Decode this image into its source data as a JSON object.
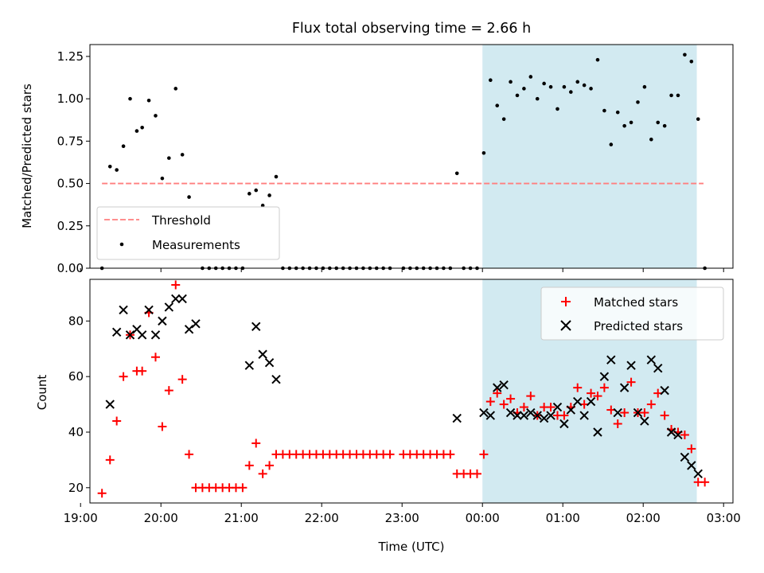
{
  "chart_data": [
    {
      "type": "scatter",
      "title": "Flux total observing time = 2.66 h",
      "xlabel": "",
      "ylabel": "Matched/Predicted stars",
      "xlim": [
        "19:07",
        "03:07"
      ],
      "ylim": [
        0,
        1.32
      ],
      "y_ticks": [
        "0.00",
        "0.25",
        "0.50",
        "0.75",
        "1.00",
        "1.25"
      ],
      "x_ticks": [
        "19:00",
        "20:00",
        "21:00",
        "22:00",
        "23:00",
        "00:00",
        "01:00",
        "02:00",
        "03:00"
      ],
      "x_tick_labels_visible": false,
      "shaded_interval": {
        "start": "00:00",
        "end": "02:40",
        "color": "#add8e6"
      },
      "legend": {
        "position": "lower-left",
        "entries": [
          "Threshold",
          "Measurements"
        ]
      },
      "series": [
        {
          "name": "Threshold",
          "kind": "dashed-line",
          "color": "#ff7f7f",
          "points": [
            [
              "19:16",
              0.5
            ],
            [
              "02:45",
              0.5
            ]
          ]
        },
        {
          "name": "Measurements",
          "kind": "dot",
          "color": "#000000",
          "points": [
            [
              "19:16",
              0.0
            ],
            [
              "19:22",
              0.6
            ],
            [
              "19:27",
              0.58
            ],
            [
              "19:32",
              0.72
            ],
            [
              "19:37",
              1.0
            ],
            [
              "19:42",
              0.81
            ],
            [
              "19:46",
              0.83
            ],
            [
              "19:51",
              0.99
            ],
            [
              "19:56",
              0.9
            ],
            [
              "20:01",
              0.53
            ],
            [
              "20:06",
              0.65
            ],
            [
              "20:11",
              1.06
            ],
            [
              "20:16",
              0.67
            ],
            [
              "20:21",
              0.42
            ],
            [
              "20:26",
              0.26
            ],
            [
              "20:31",
              0.0
            ],
            [
              "20:36",
              0.0
            ],
            [
              "20:41",
              0.0
            ],
            [
              "20:46",
              0.0
            ],
            [
              "20:51",
              0.0
            ],
            [
              "20:56",
              0.0
            ],
            [
              "21:01",
              0.0
            ],
            [
              "21:06",
              0.44
            ],
            [
              "21:11",
              0.46
            ],
            [
              "21:16",
              0.37
            ],
            [
              "21:21",
              0.43
            ],
            [
              "21:26",
              0.54
            ],
            [
              "21:31",
              0.0
            ],
            [
              "21:36",
              0.0
            ],
            [
              "21:41",
              0.0
            ],
            [
              "21:46",
              0.0
            ],
            [
              "21:51",
              0.0
            ],
            [
              "21:56",
              0.0
            ],
            [
              "22:01",
              0.0
            ],
            [
              "22:06",
              0.0
            ],
            [
              "22:11",
              0.0
            ],
            [
              "22:16",
              0.0
            ],
            [
              "22:21",
              0.0
            ],
            [
              "22:26",
              0.0
            ],
            [
              "22:31",
              0.0
            ],
            [
              "22:36",
              0.0
            ],
            [
              "22:41",
              0.0
            ],
            [
              "22:46",
              0.0
            ],
            [
              "22:51",
              0.0
            ],
            [
              "23:01",
              0.0
            ],
            [
              "23:06",
              0.0
            ],
            [
              "23:11",
              0.0
            ],
            [
              "23:16",
              0.0
            ],
            [
              "23:21",
              0.0
            ],
            [
              "23:26",
              0.0
            ],
            [
              "23:31",
              0.0
            ],
            [
              "23:36",
              0.0
            ],
            [
              "23:41",
              0.56
            ],
            [
              "23:46",
              0.0
            ],
            [
              "23:51",
              0.0
            ],
            [
              "23:56",
              0.0
            ],
            [
              "00:01",
              0.68
            ],
            [
              "00:06",
              1.11
            ],
            [
              "00:11",
              0.96
            ],
            [
              "00:16",
              0.88
            ],
            [
              "00:21",
              1.1
            ],
            [
              "00:26",
              1.02
            ],
            [
              "00:31",
              1.06
            ],
            [
              "00:36",
              1.13
            ],
            [
              "00:41",
              1.0
            ],
            [
              "00:46",
              1.09
            ],
            [
              "00:51",
              1.07
            ],
            [
              "00:56",
              0.94
            ],
            [
              "01:01",
              1.07
            ],
            [
              "01:06",
              1.04
            ],
            [
              "01:11",
              1.1
            ],
            [
              "01:16",
              1.08
            ],
            [
              "01:21",
              1.06
            ],
            [
              "01:26",
              1.23
            ],
            [
              "01:31",
              0.93
            ],
            [
              "01:36",
              0.73
            ],
            [
              "01:41",
              0.92
            ],
            [
              "01:46",
              0.84
            ],
            [
              "01:51",
              0.86
            ],
            [
              "01:56",
              0.98
            ],
            [
              "02:01",
              1.07
            ],
            [
              "02:06",
              0.76
            ],
            [
              "02:11",
              0.86
            ],
            [
              "02:16",
              0.84
            ],
            [
              "02:21",
              1.02
            ],
            [
              "02:26",
              1.02
            ],
            [
              "02:31",
              1.26
            ],
            [
              "02:36",
              1.22
            ],
            [
              "02:41",
              0.88
            ],
            [
              "02:46",
              0.0
            ]
          ]
        }
      ]
    },
    {
      "type": "scatter",
      "title": "",
      "xlabel": "Time (UTC)",
      "ylabel": "Count",
      "xlim": [
        "19:07",
        "03:07"
      ],
      "ylim": [
        14.5,
        95
      ],
      "y_ticks": [
        "20",
        "40",
        "60",
        "80"
      ],
      "x_ticks": [
        "19:00",
        "20:00",
        "21:00",
        "22:00",
        "23:00",
        "00:00",
        "01:00",
        "02:00",
        "03:00"
      ],
      "shaded_interval": {
        "start": "00:00",
        "end": "02:40",
        "color": "#add8e6"
      },
      "legend": {
        "position": "top-right",
        "entries": [
          "Matched stars",
          "Predicted stars"
        ]
      },
      "series": [
        {
          "name": "Matched stars",
          "marker": "+",
          "color": "#ff0000",
          "points": [
            [
              "19:16",
              18
            ],
            [
              "19:22",
              30
            ],
            [
              "19:27",
              44
            ],
            [
              "19:32",
              60
            ],
            [
              "19:37",
              75
            ],
            [
              "19:42",
              62
            ],
            [
              "19:46",
              62
            ],
            [
              "19:51",
              83
            ],
            [
              "19:56",
              67
            ],
            [
              "20:01",
              42
            ],
            [
              "20:06",
              55
            ],
            [
              "20:11",
              93
            ],
            [
              "20:16",
              59
            ],
            [
              "20:21",
              32
            ],
            [
              "20:26",
              20
            ],
            [
              "20:31",
              20
            ],
            [
              "20:36",
              20
            ],
            [
              "20:41",
              20
            ],
            [
              "20:46",
              20
            ],
            [
              "20:51",
              20
            ],
            [
              "20:56",
              20
            ],
            [
              "21:01",
              20
            ],
            [
              "21:06",
              28
            ],
            [
              "21:11",
              36
            ],
            [
              "21:16",
              25
            ],
            [
              "21:21",
              28
            ],
            [
              "21:26",
              32
            ],
            [
              "21:31",
              32
            ],
            [
              "21:36",
              32
            ],
            [
              "21:41",
              32
            ],
            [
              "21:46",
              32
            ],
            [
              "21:51",
              32
            ],
            [
              "21:56",
              32
            ],
            [
              "22:01",
              32
            ],
            [
              "22:06",
              32
            ],
            [
              "22:11",
              32
            ],
            [
              "22:16",
              32
            ],
            [
              "22:21",
              32
            ],
            [
              "22:26",
              32
            ],
            [
              "22:31",
              32
            ],
            [
              "22:36",
              32
            ],
            [
              "22:41",
              32
            ],
            [
              "22:46",
              32
            ],
            [
              "22:51",
              32
            ],
            [
              "23:01",
              32
            ],
            [
              "23:06",
              32
            ],
            [
              "23:11",
              32
            ],
            [
              "23:16",
              32
            ],
            [
              "23:21",
              32
            ],
            [
              "23:26",
              32
            ],
            [
              "23:31",
              32
            ],
            [
              "23:36",
              32
            ],
            [
              "23:41",
              25
            ],
            [
              "23:46",
              25
            ],
            [
              "23:51",
              25
            ],
            [
              "23:56",
              25
            ],
            [
              "00:01",
              32
            ],
            [
              "00:06",
              51
            ],
            [
              "00:11",
              54
            ],
            [
              "00:16",
              50
            ],
            [
              "00:21",
              52
            ],
            [
              "00:26",
              47
            ],
            [
              "00:31",
              49
            ],
            [
              "00:36",
              53
            ],
            [
              "00:41",
              46
            ],
            [
              "00:46",
              49
            ],
            [
              "00:51",
              49
            ],
            [
              "00:56",
              46
            ],
            [
              "01:01",
              46
            ],
            [
              "01:06",
              49
            ],
            [
              "01:11",
              56
            ],
            [
              "01:16",
              50
            ],
            [
              "01:21",
              54
            ],
            [
              "01:26",
              53
            ],
            [
              "01:31",
              56
            ],
            [
              "01:36",
              48
            ],
            [
              "01:41",
              43
            ],
            [
              "01:46",
              47
            ],
            [
              "01:51",
              58
            ],
            [
              "01:56",
              47
            ],
            [
              "02:01",
              47
            ],
            [
              "02:06",
              50
            ],
            [
              "02:11",
              54
            ],
            [
              "02:16",
              46
            ],
            [
              "02:21",
              41
            ],
            [
              "02:26",
              40
            ],
            [
              "02:31",
              39
            ],
            [
              "02:36",
              34
            ],
            [
              "02:41",
              22
            ],
            [
              "02:46",
              22
            ]
          ]
        },
        {
          "name": "Predicted stars",
          "marker": "x",
          "color": "#000000",
          "points": [
            [
              "19:22",
              50
            ],
            [
              "19:27",
              76
            ],
            [
              "19:32",
              84
            ],
            [
              "19:37",
              75
            ],
            [
              "19:42",
              77
            ],
            [
              "19:46",
              75
            ],
            [
              "19:51",
              84
            ],
            [
              "19:56",
              75
            ],
            [
              "20:01",
              80
            ],
            [
              "20:06",
              85
            ],
            [
              "20:11",
              88
            ],
            [
              "20:16",
              88
            ],
            [
              "20:21",
              77
            ],
            [
              "20:26",
              79
            ],
            [
              "21:06",
              64
            ],
            [
              "21:11",
              78
            ],
            [
              "21:16",
              68
            ],
            [
              "21:21",
              65
            ],
            [
              "21:26",
              59
            ],
            [
              "23:41",
              45
            ],
            [
              "00:01",
              47
            ],
            [
              "00:06",
              46
            ],
            [
              "00:11",
              56
            ],
            [
              "00:16",
              57
            ],
            [
              "00:21",
              47
            ],
            [
              "00:26",
              46
            ],
            [
              "00:31",
              46
            ],
            [
              "00:36",
              47
            ],
            [
              "00:41",
              46
            ],
            [
              "00:46",
              45
            ],
            [
              "00:51",
              46
            ],
            [
              "00:56",
              49
            ],
            [
              "01:01",
              43
            ],
            [
              "01:06",
              48
            ],
            [
              "01:11",
              51
            ],
            [
              "01:16",
              46
            ],
            [
              "01:21",
              51
            ],
            [
              "01:26",
              40
            ],
            [
              "01:31",
              60
            ],
            [
              "01:36",
              66
            ],
            [
              "01:41",
              47
            ],
            [
              "01:46",
              56
            ],
            [
              "01:51",
              64
            ],
            [
              "01:56",
              47
            ],
            [
              "02:01",
              44
            ],
            [
              "02:06",
              66
            ],
            [
              "02:11",
              63
            ],
            [
              "02:16",
              55
            ],
            [
              "02:21",
              40
            ],
            [
              "02:26",
              39
            ],
            [
              "02:31",
              31
            ],
            [
              "02:36",
              28
            ],
            [
              "02:41",
              25
            ]
          ]
        }
      ]
    }
  ]
}
